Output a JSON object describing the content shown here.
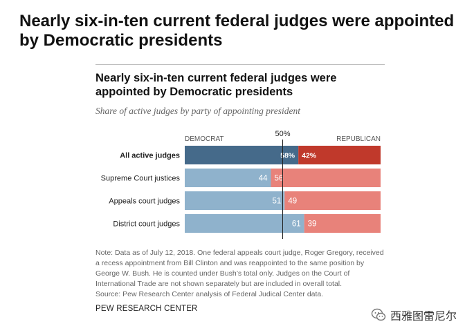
{
  "page": {
    "outer_title": "Nearly six-in-ten current federal judges were appointed by Democratic presidents",
    "chart_title": "Nearly six-in-ten current federal judges were appointed by Democratic presidents",
    "subtitle": "Share of active judges by party of appointing president",
    "note": "Note: Data as of July 12, 2018. One federal appeals court judge, Roger Gregory, received a recess appointment from Bill Clinton and was reappointed to the same position by George W. Bush. He is counted under Bush’s total only. Judges on the Court of International Trade are not shown separately but are included in overall total.",
    "source": "Source: Pew Research Center analysis of Federal Judical Center data.",
    "org": "PEW RESEARCH CENTER",
    "watermark": "西雅图雷尼尔"
  },
  "chart_data": {
    "type": "bar",
    "orientation": "horizontal",
    "stacked": true,
    "title": "Nearly six-in-ten current federal judges were appointed by Democratic presidents",
    "subtitle": "Share of active judges by party of appointing president",
    "xlim": [
      0,
      100
    ],
    "reference_line": {
      "value": 50,
      "label": "50%"
    },
    "categories": [
      "All active judges",
      "Supreme Court justices",
      "Appeals court judges",
      "District court judges"
    ],
    "series": [
      {
        "name": "DEMOCRAT",
        "values": [
          58,
          44,
          51,
          61
        ],
        "labels": [
          "58%",
          "44",
          "51",
          "61"
        ],
        "colors": [
          "#456a8a",
          "#8fb2cc",
          "#8fb2cc",
          "#8fb2cc"
        ]
      },
      {
        "name": "REPUBLICAN",
        "values": [
          42,
          56,
          49,
          39
        ],
        "labels": [
          "42%",
          "56",
          "49",
          "39"
        ],
        "colors": [
          "#c0392b",
          "#e8827a",
          "#e8827a",
          "#e8827a"
        ]
      }
    ],
    "highlight_category": "All active judges"
  }
}
